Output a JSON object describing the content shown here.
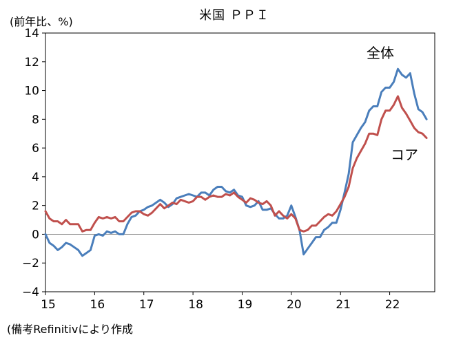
{
  "chart_data": {
    "type": "line",
    "title": "米国 ＰＰＩ",
    "ylabel": "(前年比、%)",
    "source": "(備考Refinitivにより作成",
    "ylim": [
      -4,
      14
    ],
    "yticks": [
      -4,
      -2,
      0,
      2,
      4,
      6,
      8,
      10,
      12,
      14
    ],
    "xlim": [
      2015,
      2022.9167
    ],
    "xticks": [
      {
        "x": 2015,
        "label": "15"
      },
      {
        "x": 2016,
        "label": "16"
      },
      {
        "x": 2017,
        "label": "17"
      },
      {
        "x": 2018,
        "label": "18"
      },
      {
        "x": 2019,
        "label": "19"
      },
      {
        "x": 2020,
        "label": "20"
      },
      {
        "x": 2021,
        "label": "21"
      },
      {
        "x": 2022,
        "label": "22"
      }
    ],
    "start": 2015,
    "step": 0.08333,
    "series": [
      {
        "name": "全体",
        "color": "#4a7ebb",
        "values": [
          0.0,
          -0.6,
          -0.8,
          -1.1,
          -0.9,
          -0.6,
          -0.7,
          -0.9,
          -1.1,
          -1.5,
          -1.3,
          -1.1,
          -0.1,
          0.0,
          -0.1,
          0.2,
          0.1,
          0.2,
          0.0,
          0.0,
          0.7,
          1.2,
          1.3,
          1.6,
          1.7,
          1.9,
          2.0,
          2.2,
          2.4,
          2.2,
          1.9,
          2.1,
          2.5,
          2.6,
          2.7,
          2.8,
          2.7,
          2.6,
          2.9,
          2.9,
          2.7,
          3.1,
          3.3,
          3.3,
          3.0,
          2.9,
          3.1,
          2.7,
          2.6,
          2.0,
          1.9,
          2.0,
          2.3,
          1.7,
          1.7,
          1.8,
          1.4,
          1.1,
          1.1,
          1.3,
          2.0,
          1.2,
          0.3,
          -1.4,
          -1.0,
          -0.6,
          -0.2,
          -0.2,
          0.3,
          0.5,
          0.8,
          0.8,
          1.7,
          2.9,
          4.2,
          6.4,
          6.9,
          7.4,
          7.8,
          8.6,
          8.9,
          8.9,
          9.9,
          10.2,
          10.2,
          10.6,
          11.5,
          11.1,
          10.9,
          11.2,
          9.8,
          8.7,
          8.5,
          8.0
        ]
      },
      {
        "name": "コア",
        "color": "#c0504d",
        "values": [
          1.6,
          1.1,
          0.9,
          0.9,
          0.7,
          1.0,
          0.7,
          0.7,
          0.7,
          0.2,
          0.3,
          0.3,
          0.8,
          1.2,
          1.1,
          1.2,
          1.1,
          1.2,
          0.9,
          0.9,
          1.2,
          1.5,
          1.6,
          1.6,
          1.4,
          1.3,
          1.5,
          1.8,
          2.1,
          1.8,
          2.0,
          2.2,
          2.1,
          2.4,
          2.3,
          2.2,
          2.3,
          2.6,
          2.6,
          2.4,
          2.6,
          2.7,
          2.6,
          2.6,
          2.8,
          2.7,
          2.9,
          2.6,
          2.4,
          2.2,
          2.5,
          2.4,
          2.2,
          2.1,
          2.3,
          2.0,
          1.3,
          1.6,
          1.3,
          1.1,
          1.4,
          1.1,
          0.3,
          0.2,
          0.3,
          0.6,
          0.6,
          0.9,
          1.2,
          1.4,
          1.3,
          1.6,
          2.1,
          2.6,
          3.3,
          4.6,
          5.3,
          5.8,
          6.3,
          7.0,
          7.0,
          6.9,
          8.0,
          8.6,
          8.6,
          9.0,
          9.6,
          8.8,
          8.4,
          7.9,
          7.4,
          7.1,
          7.0,
          6.7
        ]
      }
    ]
  }
}
